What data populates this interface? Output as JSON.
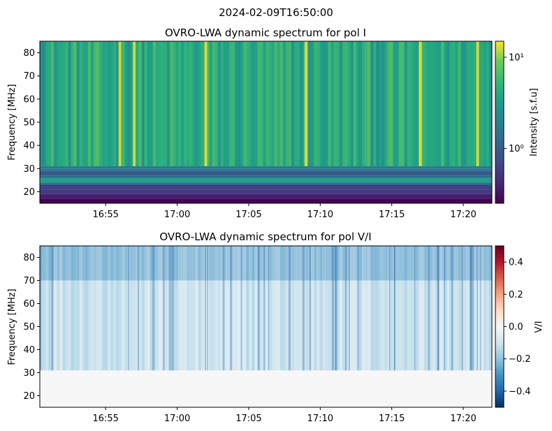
{
  "figure": {
    "suptitle": "2024-02-09T16:50:00"
  },
  "chart_data": [
    {
      "type": "heatmap",
      "title": "OVRO-LWA dynamic spectrum for pol I",
      "xlabel": "",
      "ylabel": "Frequency [MHz]",
      "x_ticks": [
        "16:55",
        "17:00",
        "17:05",
        "17:10",
        "17:15",
        "17:20"
      ],
      "x_range": [
        "16:50:24",
        "17:22:00"
      ],
      "y_ticks": [
        20,
        30,
        40,
        50,
        60,
        70,
        80
      ],
      "ylim": [
        15,
        85
      ],
      "colormap": "viridis",
      "color_scale": "log",
      "colorbar": {
        "label": "Intensity [s.f.u]",
        "ticks": [
          "10⁰",
          "10¹"
        ],
        "tick_values": [
          1,
          10
        ],
        "range": [
          0.25,
          15
        ]
      },
      "bands": [
        {
          "freq": [
            15,
            17
          ],
          "intensity": 0.25
        },
        {
          "freq": [
            17,
            19
          ],
          "intensity": 0.35
        },
        {
          "freq": [
            19,
            21
          ],
          "intensity": 0.5
        },
        {
          "freq": [
            21,
            23
          ],
          "intensity": 0.55
        },
        {
          "freq": [
            23,
            24
          ],
          "intensity": 1.1
        },
        {
          "freq": [
            24,
            26
          ],
          "intensity": 2.5
        },
        {
          "freq": [
            26,
            27
          ],
          "intensity": 1.0
        },
        {
          "freq": [
            27,
            29
          ],
          "intensity": 0.8
        },
        {
          "freq": [
            29,
            30
          ],
          "intensity": 1.2
        },
        {
          "freq": [
            30,
            31
          ],
          "intensity": 1.4
        },
        {
          "freq": [
            31,
            85
          ],
          "intensity": 2.5
        }
      ],
      "bright_bursts": [
        "16:56",
        "16:57",
        "17:02",
        "17:09",
        "17:17",
        "17:21"
      ]
    },
    {
      "type": "heatmap",
      "title": "OVRO-LWA dynamic spectrum for pol V/I",
      "xlabel": "",
      "ylabel": "Frequency [MHz]",
      "x_ticks": [
        "16:55",
        "17:00",
        "17:05",
        "17:10",
        "17:15",
        "17:20"
      ],
      "x_range": [
        "16:50:24",
        "17:22:00"
      ],
      "y_ticks": [
        20,
        30,
        40,
        50,
        60,
        70,
        80
      ],
      "ylim": [
        15,
        85
      ],
      "colormap": "RdBu_r",
      "color_scale": "linear",
      "colorbar": {
        "label": "V/I",
        "ticks": [
          "−0.4",
          "−0.2",
          "0.0",
          "0.2",
          "0.4"
        ],
        "tick_values": [
          -0.4,
          -0.2,
          0.0,
          0.2,
          0.4
        ],
        "range": [
          -0.5,
          0.5
        ]
      },
      "bands": [
        {
          "freq": [
            15,
            31
          ],
          "v_over_i": 0.0
        },
        {
          "freq": [
            31,
            70
          ],
          "v_over_i": -0.12
        },
        {
          "freq": [
            70,
            85
          ],
          "v_over_i": -0.3
        }
      ]
    }
  ]
}
